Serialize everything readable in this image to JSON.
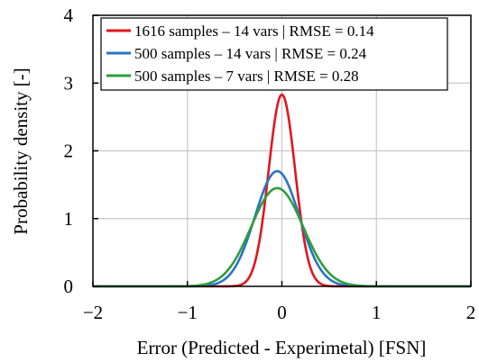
{
  "chart_data": {
    "type": "line",
    "title": "",
    "xlabel": "Error (Predicted - Experimetal) [FSN]",
    "ylabel": "Probability density [-]",
    "xlim": [
      -2,
      2
    ],
    "ylim": [
      0,
      4
    ],
    "xticks": [
      -2,
      -1,
      0,
      1,
      2
    ],
    "yticks": [
      0,
      1,
      2,
      3,
      4
    ],
    "xtick_labels": [
      "−2",
      "−1",
      "0",
      "1",
      "2"
    ],
    "ytick_labels": [
      "0",
      "1",
      "2",
      "3",
      "4"
    ],
    "grid": true,
    "legend_position": "top-right",
    "series": [
      {
        "name": "1616 samples – 14 vars | RMSE = 0.14",
        "color": "#e0161f",
        "peak": 2.83,
        "center": 0.0,
        "sigma": 0.14,
        "x_min": -1.2,
        "x_max": 1.0
      },
      {
        "name": "500 samples – 14 vars | RMSE = 0.24",
        "color": "#2a73c4",
        "peak": 1.7,
        "center": -0.05,
        "sigma": 0.235,
        "x_min": -1.45,
        "x_max": 1.3
      },
      {
        "name": "500 samples – 7 vars | RMSE = 0.28",
        "color": "#2e9e3a",
        "peak": 1.45,
        "center": -0.05,
        "sigma": 0.275,
        "x_min": -2.0,
        "x_max": 2.0
      }
    ]
  }
}
